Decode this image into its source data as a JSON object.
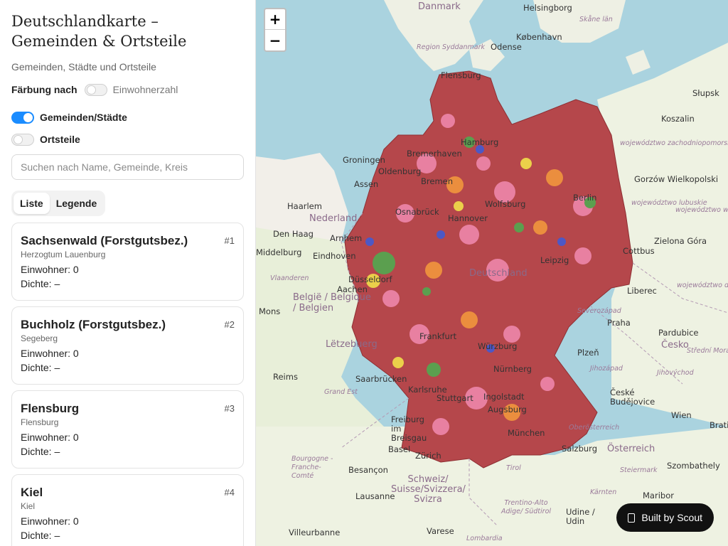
{
  "sidebar": {
    "title": "Deutschlandkarte – Gemeinden & Ortsteile",
    "subtitle": "Gemeinden, Städte und Ortsteile",
    "coloring": {
      "label": "Färbung nach",
      "option": "Einwohnerzahl",
      "enabled": false
    },
    "layers": [
      {
        "label": "Gemeinden/Städte",
        "enabled": true
      },
      {
        "label": "Ortsteile",
        "enabled": false
      }
    ],
    "search": {
      "placeholder": "Suchen nach Name, Gemeinde, Kreis",
      "value": ""
    },
    "tabs": [
      {
        "label": "Liste",
        "active": true
      },
      {
        "label": "Legende",
        "active": false
      }
    ],
    "results": [
      {
        "name": "Sachsenwald (Forstgutsbez.)",
        "rank": "#1",
        "kreis": "Herzogtum Lauenburg",
        "einwohner": "Einwohner: 0",
        "dichte": "Dichte: –"
      },
      {
        "name": "Buchholz (Forstgutsbez.)",
        "rank": "#2",
        "kreis": "Segeberg",
        "einwohner": "Einwohner: 0",
        "dichte": "Dichte: –"
      },
      {
        "name": "Flensburg",
        "rank": "#3",
        "kreis": "Flensburg",
        "einwohner": "Einwohner: 0",
        "dichte": "Dichte: –"
      },
      {
        "name": "Kiel",
        "rank": "#4",
        "kreis": "Kiel",
        "einwohner": "Einwohner: 0",
        "dichte": "Dichte: –"
      }
    ]
  },
  "map": {
    "zoom_in": "+",
    "zoom_out": "−",
    "labels": {
      "danmark": "Danmark",
      "helsingborg": "Helsingborg",
      "skane": "Skåne län",
      "kobenhavn": "København",
      "syddanmark": "Region Syddanmark",
      "odense": "Odense",
      "flensburg": "Flensburg",
      "slupsk": "Słupsk",
      "koszalin": "Koszalin",
      "zachodnio": "województwo zachodniopomorskie",
      "hamburg": "Hamburg",
      "bremerhaven": "Bremerhaven",
      "groningen": "Groningen",
      "oldenburg": "Oldenburg",
      "bremen": "Bremen",
      "assen": "Assen",
      "gorzow": "Gorzów Wielkopolski",
      "berlin": "Berlin",
      "haarlem": "Haarlem",
      "nederland": "Nederland",
      "wolfsburg": "Wolfsburg",
      "arnhem": "Arnhem",
      "osnabruck": "Osnabrück",
      "hannover": "Hannover",
      "lubuskie": "województwo lubuskie",
      "wielkopolskie": "województwo wielkopolskie",
      "denhaag": "Den Haag",
      "middelburg": "Middelburg",
      "eindhoven": "Eindhoven",
      "zielona": "Zielona Góra",
      "cottbus": "Cottbus",
      "leipzig": "Leipzig",
      "vlaanderen": "Vlaanderen",
      "deutschland": "Deutschland",
      "belgie": "België / Belgique / Belgien",
      "mons": "Mons",
      "aachen": "Aachen",
      "dusseldorf": "Düsseldorf",
      "liberec": "Liberec",
      "dolnoslaskie": "województwo dolnośląskie",
      "severozapad": "Severozápad",
      "praha": "Praha",
      "pardubice": "Pardubice",
      "letzebuerg": "Lëtzebuerg",
      "frankfurt": "Frankfurt",
      "wurzburg": "Würzburg",
      "cesko": "Česko",
      "plzen": "Plzeň",
      "strednimorava": "Střední Morava",
      "reims": "Reims",
      "jihozapad": "Jihozápad",
      "jihovychod": "Jihovýchod",
      "saarbrucken": "Saarbrücken",
      "grandest": "Grand Est",
      "nurnberg": "Nürnberg",
      "ceske": "České Budějovice",
      "karlsruhe": "Karlsruhe",
      "stuttgart": "Stuttgart",
      "ingolstadt": "Ingolstadt",
      "augsburg": "Augsburg",
      "wien": "Wien",
      "bratislava": "Bratisl",
      "oberosterreich": "Oberösterreich",
      "freiburg": "Freiburg im Breisgau",
      "munchen": "München",
      "basel": "Basel",
      "zurich": "Zürich",
      "salzburg": "Salzburg",
      "osterreich": "Österreich",
      "tirol": "Tirol",
      "bourgogne": "Bourgogne - Franche-Comté",
      "besancon": "Besançon",
      "steiermark": "Steiermark",
      "szombathely": "Szombathely",
      "schweiz": "Schweiz/ Suisse/Svizzera/ Svizra",
      "karnten": "Kärnten",
      "lausanne": "Lausanne",
      "maribor": "Maribor",
      "trentino": "Trentino-Alto Adige/ Südtirol",
      "udine": "Udine / Udin",
      "villeurbanne": "Villeurbanne",
      "varese": "Varese",
      "lombardia": "Lombardia"
    }
  },
  "badge": {
    "label": "Built by Scout"
  },
  "colors": {
    "accent": "#1a8cff",
    "water": "#aad3df",
    "land": "#f2efe9",
    "choropleth_base": "#b5474b"
  }
}
